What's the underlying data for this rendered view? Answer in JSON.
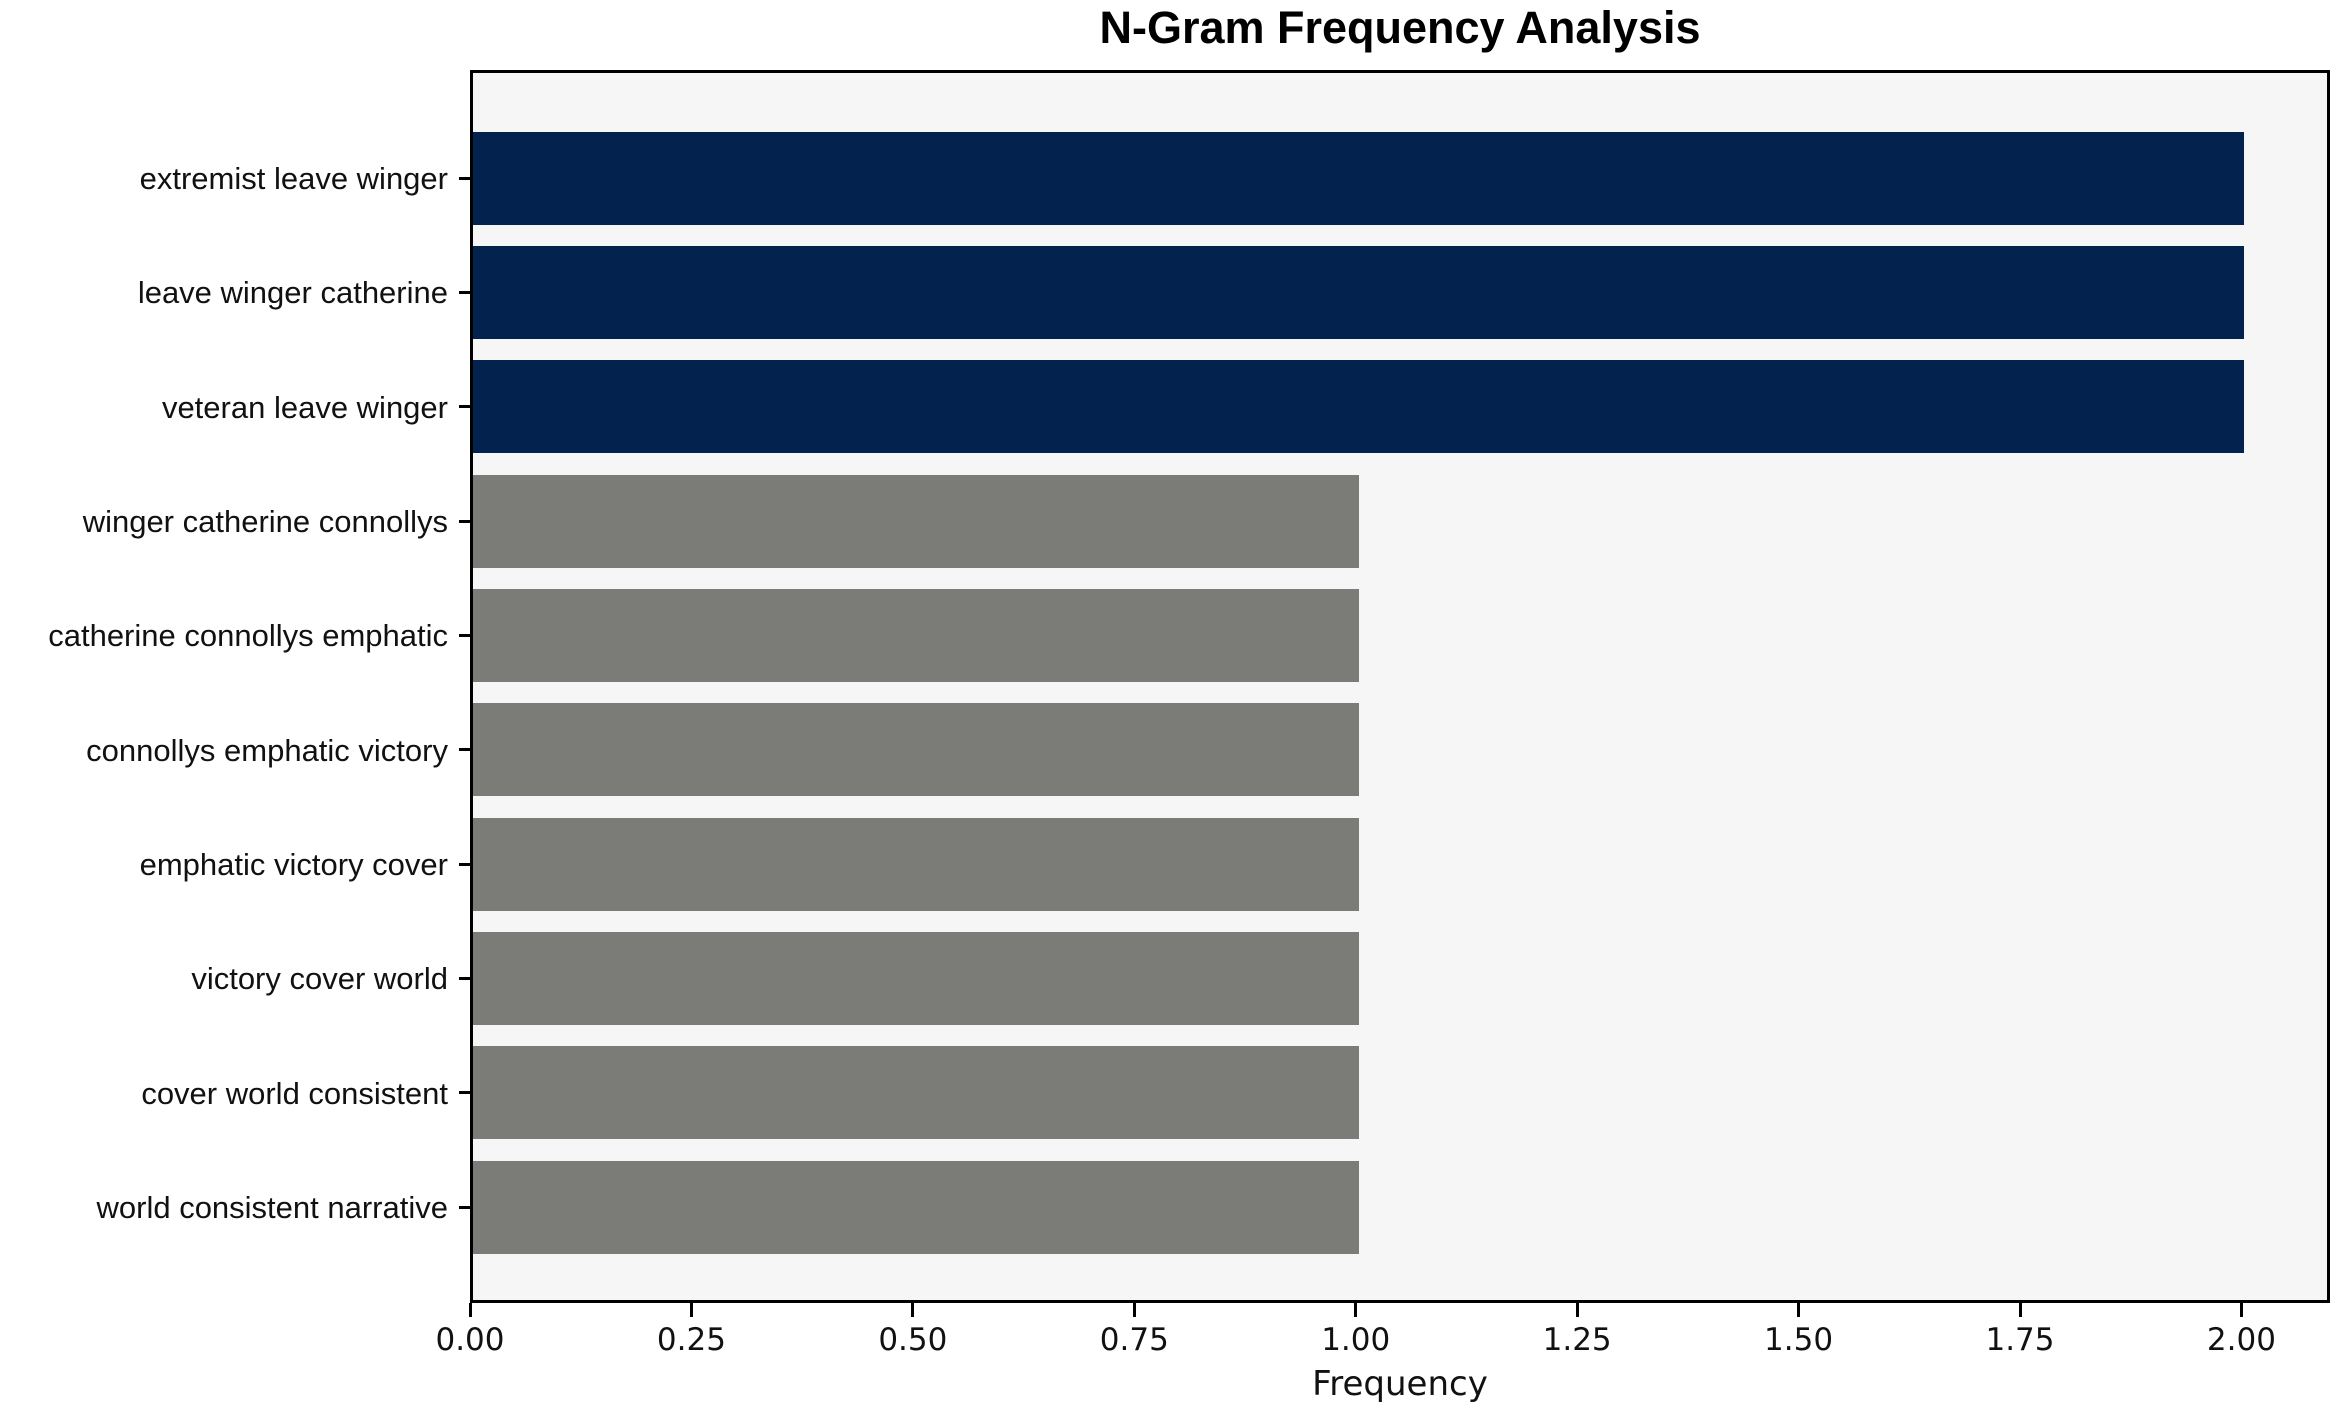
{
  "chart_data": {
    "type": "bar",
    "orientation": "horizontal",
    "title": "N-Gram Frequency Analysis",
    "xlabel": "Frequency",
    "ylabel": "",
    "categories": [
      "extremist leave winger",
      "leave winger catherine",
      "veteran leave winger",
      "winger catherine connollys",
      "catherine connollys emphatic",
      "connollys emphatic victory",
      "emphatic victory cover",
      "victory cover world",
      "cover world consistent",
      "world consistent narrative"
    ],
    "values": [
      2,
      2,
      2,
      1,
      1,
      1,
      1,
      1,
      1,
      1
    ],
    "bar_colors": [
      "#03224d",
      "#03224d",
      "#03224d",
      "#7b7b78",
      "#7b7b78",
      "#7b7b78",
      "#7b7b78",
      "#7b7b78",
      "#7b7b78",
      "#7b7b78"
    ],
    "highlight_color": "#03224d",
    "default_color": "#7b7b78",
    "plot_background": "#f6f6f7",
    "figure_background": "#ffffff",
    "spine_color": "#000000",
    "xlim": [
      0,
      2.1
    ],
    "xticks": [
      0.0,
      0.25,
      0.5,
      0.75,
      1.0,
      1.25,
      1.5,
      1.75,
      2.0
    ],
    "xtick_labels": [
      "0.00",
      "0.25",
      "0.50",
      "0.75",
      "1.00",
      "1.25",
      "1.50",
      "1.75",
      "2.00"
    ],
    "grid": false,
    "legend": "none"
  }
}
